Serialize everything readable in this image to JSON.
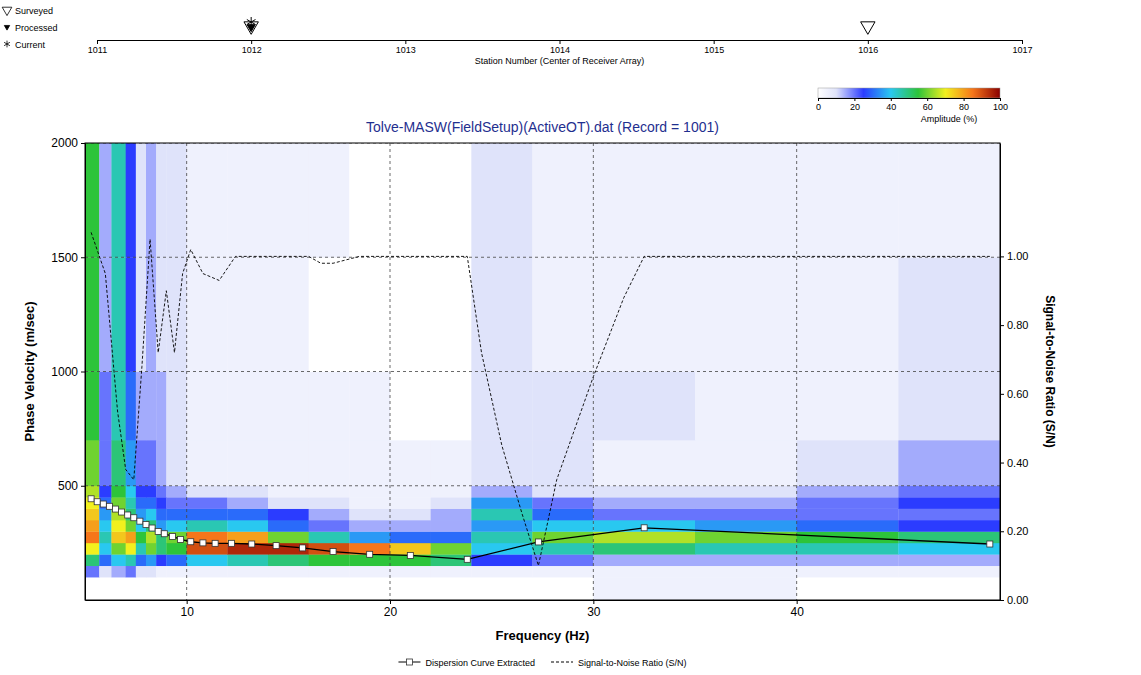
{
  "chart_data": [
    {
      "type": "scatter",
      "xlabel": "Station Number (Center of Receiver Array)",
      "xlim": [
        1011,
        1017
      ],
      "xticks": [
        1011,
        1012,
        1013,
        1014,
        1015,
        1016,
        1017
      ],
      "tick_labels": "x",
      "legend": "top-left",
      "series": [
        {
          "name": "Surveyed",
          "marker": "triangle-down-open",
          "color": "#000000",
          "x": [
            1012,
            1016
          ]
        },
        {
          "name": "Processed",
          "marker": "triangle-down",
          "color": "#000000",
          "x": [
            1012
          ]
        },
        {
          "name": "Current",
          "marker": "asterisk",
          "color": "#000000",
          "x": [
            1012
          ]
        }
      ]
    },
    {
      "type": "heatmap",
      "title": "Tolve-MASW(FieldSetup)(ActiveOT).dat (Record = 1001)",
      "xlabel": "Frequency (Hz)",
      "ylabel": "Phase Velocity (m/sec)",
      "y2label": "Signal-to-Noise Ratio (S/N)",
      "xlim": [
        5,
        50
      ],
      "xticks": [
        10,
        20,
        30,
        40
      ],
      "ylim": [
        0,
        2000
      ],
      "yticks": [
        500,
        1000,
        1500,
        2000
      ],
      "y2lim": [
        0,
        1.33
      ],
      "y2ticks": [
        {
          "value": 0,
          "label": "0.00"
        },
        {
          "value": 0.2,
          "label": "0.20"
        },
        {
          "value": 0.4,
          "label": "0.40"
        },
        {
          "value": 0.6,
          "label": "0.60"
        },
        {
          "value": 0.8,
          "label": "0.80"
        },
        {
          "value": 1,
          "label": "1.00"
        }
      ],
      "grid": true,
      "legend": "bottom",
      "heatmap": {
        "x_edges": [
          5,
          5.7,
          6.3,
          7,
          7.5,
          8,
          8.5,
          9,
          10,
          12,
          14,
          16,
          18,
          20,
          22,
          24,
          27,
          30,
          35,
          40,
          45,
          50
        ],
        "y_edges": [
          0,
          100,
          150,
          200,
          250,
          300,
          350,
          400,
          450,
          500,
          700,
          1000,
          1500,
          2000
        ],
        "values": [
          [
            0,
            0,
            0,
            0,
            0,
            0,
            0,
            0,
            0,
            0,
            0,
            0,
            0,
            0,
            0,
            0,
            0,
            5,
            5,
            0,
            0
          ],
          [
            20,
            10,
            15,
            20,
            10,
            10,
            5,
            5,
            5,
            5,
            5,
            5,
            5,
            5,
            5,
            5,
            5,
            5,
            5,
            5,
            5
          ],
          [
            50,
            30,
            40,
            45,
            30,
            35,
            25,
            30,
            40,
            45,
            50,
            55,
            55,
            55,
            50,
            25,
            20,
            15,
            15,
            15,
            15
          ],
          [
            70,
            40,
            60,
            70,
            45,
            60,
            50,
            55,
            90,
            95,
            95,
            90,
            85,
            75,
            60,
            40,
            45,
            50,
            45,
            45,
            40
          ],
          [
            85,
            45,
            75,
            80,
            55,
            65,
            50,
            60,
            85,
            80,
            60,
            45,
            35,
            30,
            30,
            45,
            60,
            65,
            60,
            55,
            50
          ],
          [
            80,
            40,
            70,
            60,
            40,
            50,
            35,
            40,
            45,
            40,
            30,
            20,
            15,
            15,
            15,
            35,
            40,
            40,
            35,
            30,
            25
          ],
          [
            75,
            35,
            65,
            50,
            35,
            40,
            30,
            30,
            30,
            30,
            25,
            15,
            10,
            10,
            15,
            45,
            30,
            20,
            20,
            20,
            20
          ],
          [
            70,
            30,
            60,
            45,
            30,
            30,
            25,
            20,
            20,
            15,
            10,
            10,
            5,
            5,
            10,
            35,
            20,
            15,
            15,
            20,
            25
          ],
          [
            65,
            25,
            55,
            40,
            25,
            25,
            20,
            15,
            10,
            10,
            5,
            5,
            5,
            5,
            5,
            15,
            10,
            10,
            10,
            15,
            20
          ],
          [
            60,
            20,
            50,
            35,
            20,
            20,
            15,
            10,
            5,
            5,
            5,
            5,
            5,
            5,
            5,
            10,
            10,
            5,
            5,
            10,
            15
          ],
          [
            55,
            20,
            45,
            30,
            15,
            15,
            15,
            10,
            5,
            5,
            5,
            5,
            5,
            0,
            0,
            10,
            10,
            10,
            5,
            5,
            10
          ],
          [
            55,
            15,
            45,
            25,
            10,
            15,
            10,
            10,
            5,
            5,
            5,
            0,
            0,
            0,
            0,
            10,
            5,
            5,
            5,
            5,
            10
          ],
          [
            55,
            15,
            45,
            25,
            10,
            15,
            10,
            10,
            5,
            5,
            5,
            5,
            0,
            0,
            0,
            10,
            5,
            5,
            5,
            5,
            5
          ]
        ]
      },
      "colorbar": {
        "label": "Amplitude (%)",
        "range": [
          0,
          100
        ],
        "ticks": [
          0,
          20,
          40,
          60,
          80,
          100
        ]
      },
      "series": [
        {
          "name": "Dispersion Curve Extracted",
          "type": "line",
          "marker": "square",
          "line_style": "solid",
          "color": "#000000",
          "x": [
            5.3,
            5.6,
            5.9,
            6.2,
            6.5,
            6.8,
            7.1,
            7.4,
            7.7,
            8,
            8.3,
            8.6,
            8.9,
            9.3,
            9.7,
            10.2,
            10.8,
            11.4,
            12.2,
            13.2,
            14.4,
            15.7,
            17.2,
            19,
            21,
            23.8,
            27.3,
            32.5,
            49.5
          ],
          "values": [
            443,
            430,
            420,
            410,
            398,
            385,
            372,
            360,
            345,
            330,
            315,
            300,
            290,
            278,
            265,
            255,
            250,
            248,
            248,
            245,
            238,
            228,
            212,
            200,
            195,
            178,
            254,
            316,
            245
          ]
        },
        {
          "name": "Signal-to-Noise Ratio (S/N)",
          "type": "line",
          "line_style": "dashed",
          "color": "#000000",
          "axis": "y2",
          "x": [
            5.3,
            6,
            6.6,
            7,
            7.4,
            7.8,
            8.2,
            8.6,
            9,
            9.4,
            9.8,
            10.2,
            10.8,
            11.6,
            12.4,
            14,
            16,
            16.6,
            17.2,
            18.5,
            20,
            22,
            23.8,
            24.5,
            25.5,
            26.5,
            27.3,
            28.2,
            30,
            31.5,
            32.5,
            40,
            49.5
          ],
          "values": [
            1.07,
            0.95,
            0.55,
            0.38,
            0.35,
            0.68,
            1.05,
            0.72,
            0.9,
            0.72,
            0.95,
            1.02,
            0.95,
            0.93,
            1,
            1,
            1,
            0.98,
            0.98,
            1,
            1,
            1,
            1,
            0.72,
            0.45,
            0.25,
            0.1,
            0.35,
            0.65,
            0.88,
            1,
            1,
            1
          ]
        }
      ]
    }
  ]
}
